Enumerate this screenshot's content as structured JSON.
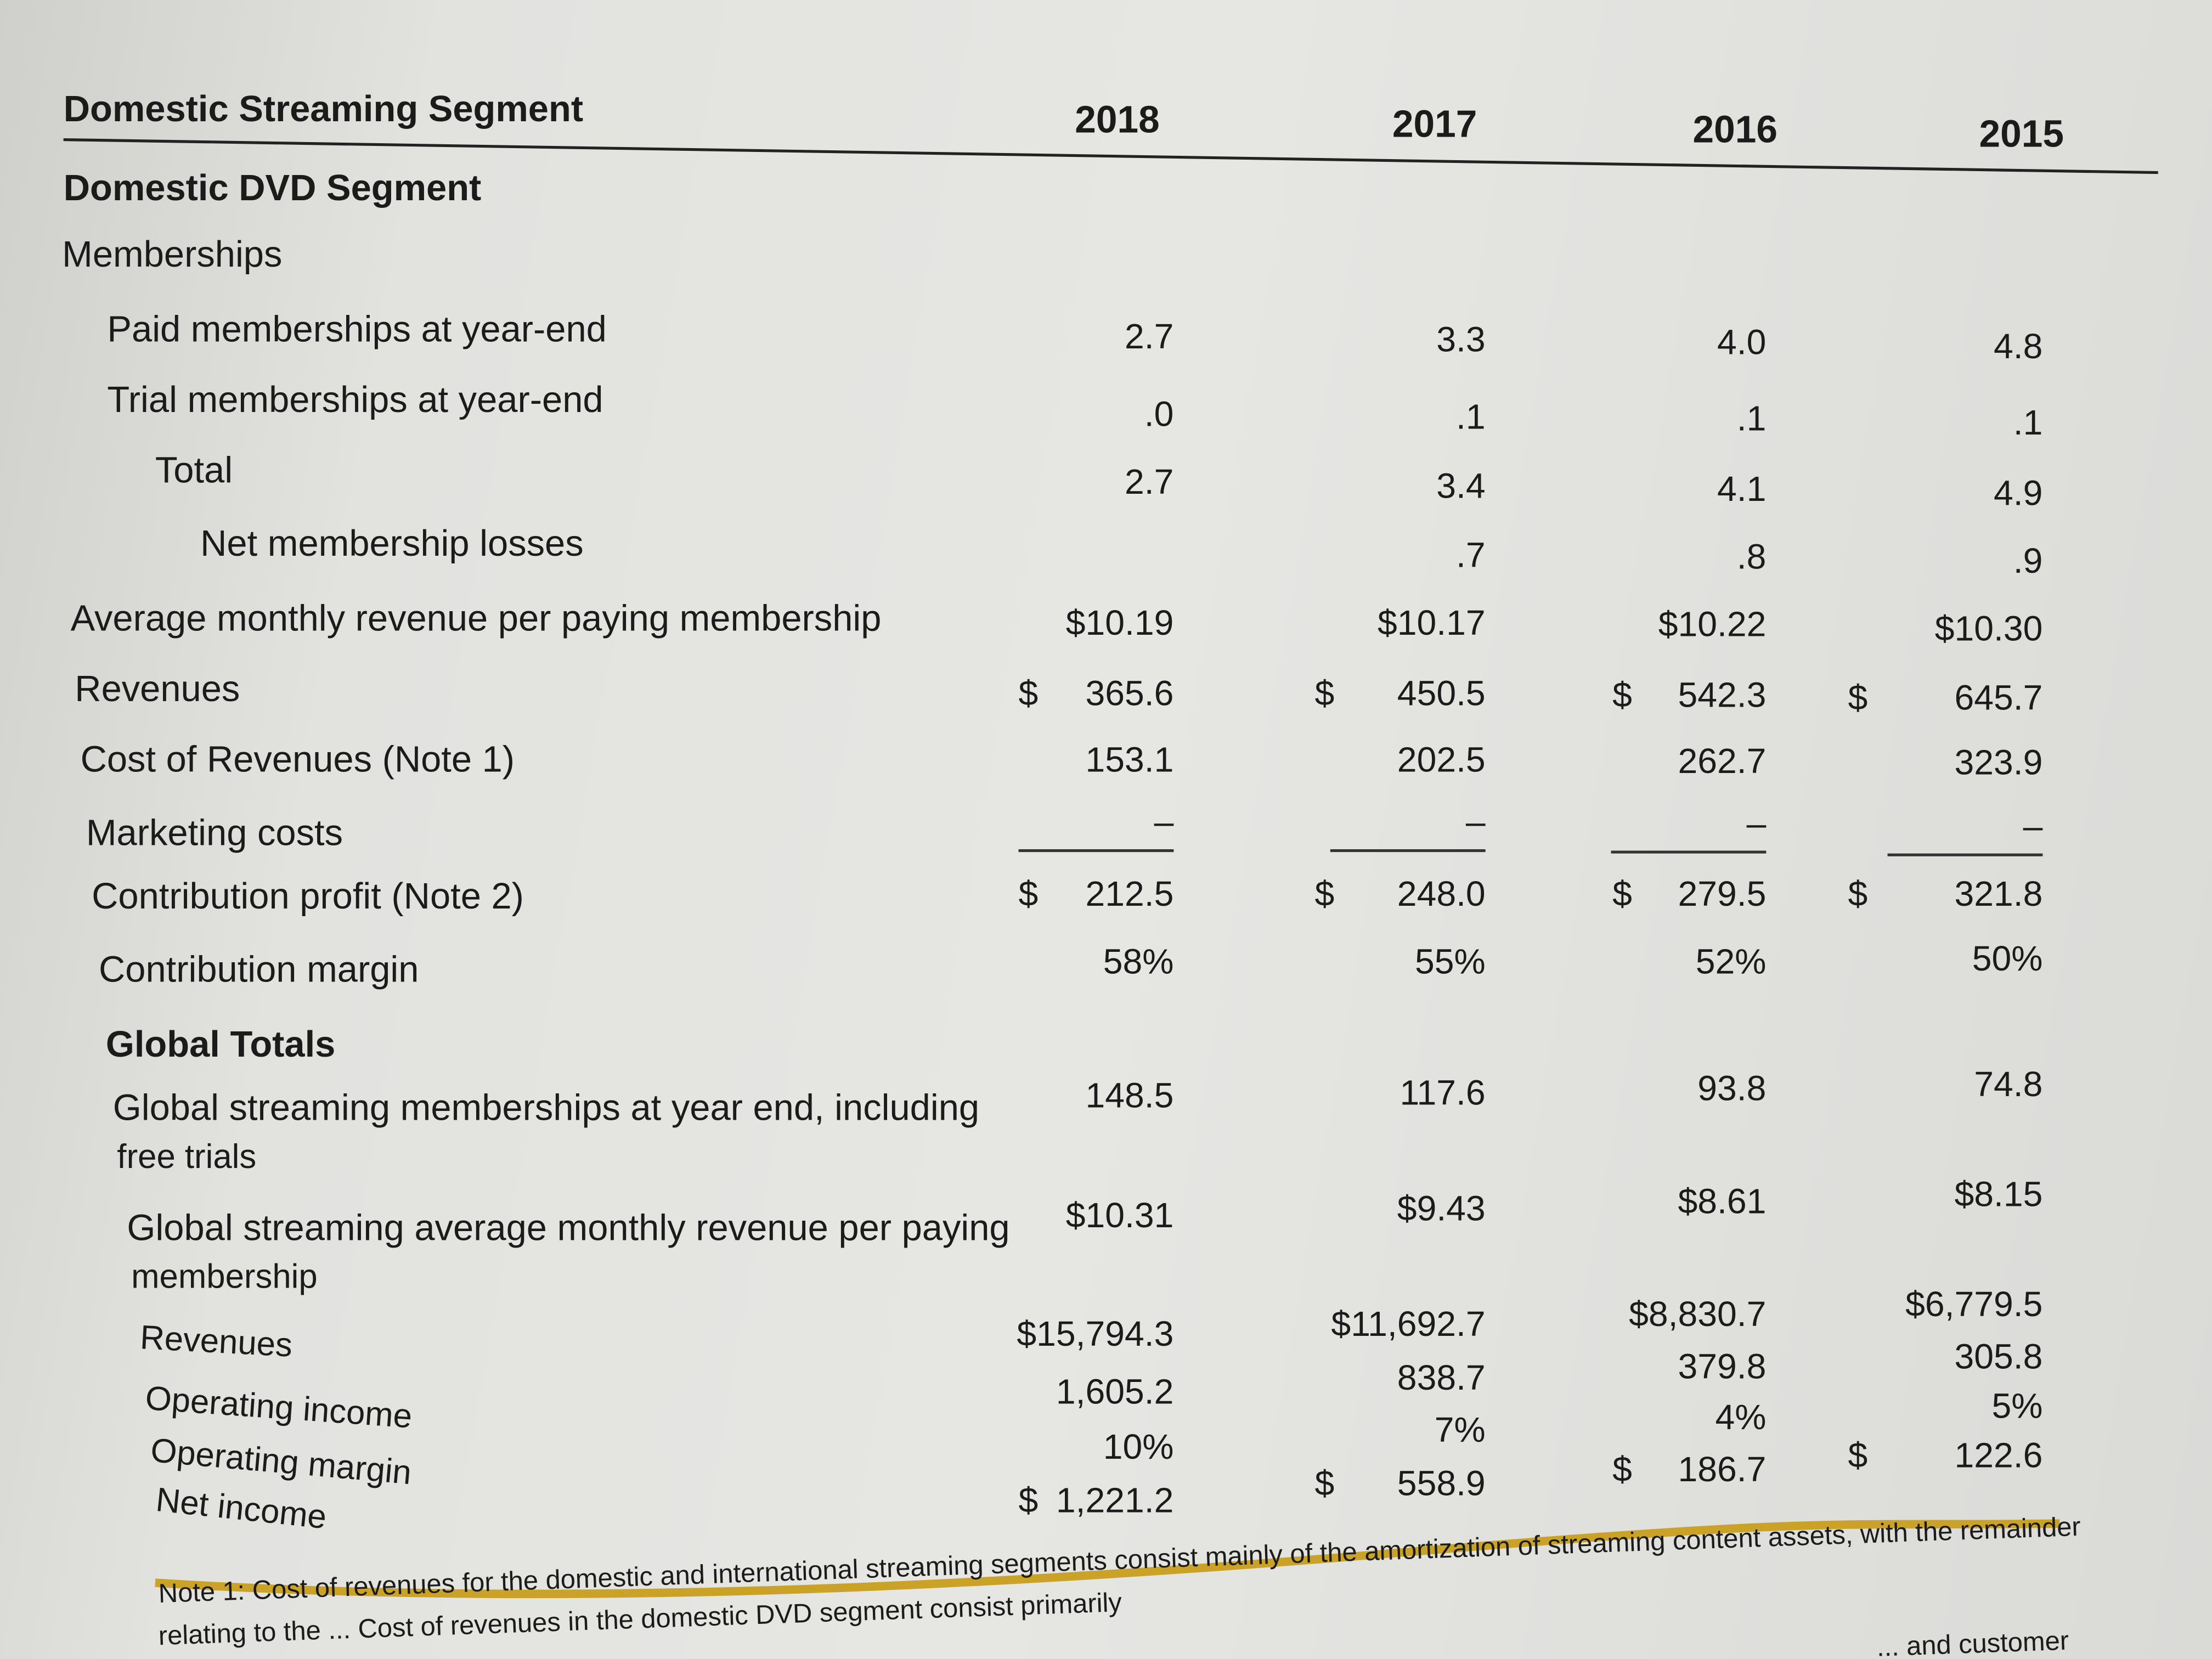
{
  "header": {
    "title": "Domestic Streaming Segment",
    "years": [
      "2018",
      "2017",
      "2016",
      "2015"
    ]
  },
  "rows": [
    {
      "label": "Domestic DVD Segment",
      "style": "bold",
      "values": []
    },
    {
      "label": "Memberships",
      "values": []
    },
    {
      "label": "Paid memberships at year-end",
      "values": [
        "2.7",
        "3.3",
        "4.0",
        "4.8"
      ]
    },
    {
      "label": "Trial memberships at year-end",
      "values": [
        ".0",
        ".1",
        ".1",
        ".1"
      ]
    },
    {
      "label": "Total",
      "values": [
        "2.7",
        "3.4",
        "4.1",
        "4.9"
      ]
    },
    {
      "label": "Net membership losses",
      "values": [
        "",
        ".7",
        ".8",
        ".9"
      ]
    },
    {
      "label": "Average monthly revenue per paying membership",
      "values": [
        "$10.19",
        "$10.17",
        "$10.22",
        "$10.30"
      ]
    },
    {
      "label": "Revenues",
      "dollar": true,
      "values": [
        "365.6",
        "450.5",
        "542.3",
        "645.7"
      ]
    },
    {
      "label": "Cost of Revenues (Note 1)",
      "values": [
        "153.1",
        "202.5",
        "262.7",
        "323.9"
      ]
    },
    {
      "label": "Marketing costs",
      "values": [
        "–",
        "–",
        "–",
        "–"
      ]
    },
    {
      "label": "Contribution profit (Note 2)",
      "dollar": true,
      "values": [
        "212.5",
        "248.0",
        "279.5",
        "321.8"
      ]
    },
    {
      "label": "Contribution margin",
      "values": [
        "58%",
        "55%",
        "52%",
        "50%"
      ]
    },
    {
      "label": "Global Totals",
      "style": "bold",
      "values": []
    },
    {
      "label": "Global streaming memberships at year end, including",
      "label2": "free trials",
      "values": [
        "148.5",
        "117.6",
        "93.8",
        "74.8"
      ]
    },
    {
      "label": "Global streaming average monthly revenue per paying",
      "label2": "membership",
      "values": [
        "$10.31",
        "$9.43",
        "$8.61",
        "$8.15"
      ]
    },
    {
      "label": "Revenues",
      "values": [
        "$15,794.3",
        "$11,692.7",
        "$8,830.7",
        "$6,779.5"
      ]
    },
    {
      "label": "Operating income",
      "values": [
        "1,605.2",
        "838.7",
        "379.8",
        "305.8"
      ]
    },
    {
      "label": "Operating margin",
      "values": [
        "10%",
        "7%",
        "4%",
        "5%"
      ]
    },
    {
      "label": "Net income",
      "dollars": [
        true,
        true,
        true,
        true
      ],
      "values": [
        "1,221.2",
        "558.9",
        "186.7",
        "122.6"
      ]
    }
  ],
  "notes": {
    "line1": "Note 1: Cost of revenues for the domestic and international streaming segments consist mainly of the amortization of streaming content assets, with the remainder",
    "line2": "relating to the ... Cost of revenues in the domestic DVD segment consist primarily",
    "line3": "... and customer"
  },
  "colors": {
    "accent_rule": "#c9a227",
    "text": "#1b1b1b",
    "paper": "#e2e2df"
  }
}
